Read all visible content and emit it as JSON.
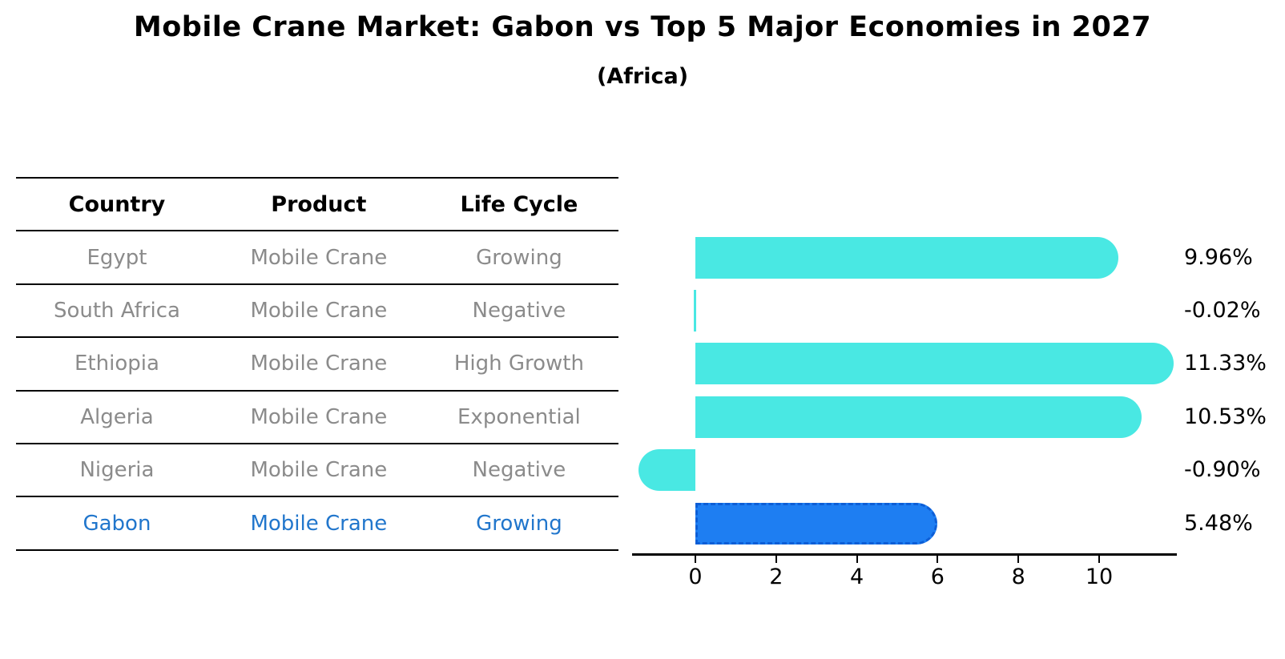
{
  "chart_data": {
    "type": "bar",
    "orientation": "horizontal",
    "title": "Mobile Crane Market: Gabon vs Top 5 Major Economies in 2027",
    "subtitle": "(Africa)",
    "categories": [
      "Egypt",
      "South Africa",
      "Ethiopia",
      "Algeria",
      "Nigeria",
      "Gabon"
    ],
    "values": [
      9.96,
      -0.02,
      11.33,
      10.53,
      -0.9,
      5.48
    ],
    "value_labels": [
      "9.96%",
      "-0.02%",
      "11.33%",
      "10.53%",
      "-0.90%",
      "5.48%"
    ],
    "xticks": [
      0,
      2,
      4,
      6,
      8,
      10
    ],
    "xlim": [
      -1.57,
      11.93
    ],
    "grid": false,
    "legend_position": "none",
    "bar_color": "#49e8e3",
    "highlight_bar_color": "#1e7ef2",
    "highlight_edge_color": "#0d5ed6",
    "highlight_index": 5
  },
  "table": {
    "headers": [
      "Country",
      "Product",
      "Life Cycle"
    ],
    "rows": [
      {
        "country": "Egypt",
        "product": "Mobile Crane",
        "life_cycle": "Growing",
        "highlighted": false
      },
      {
        "country": "South Africa",
        "product": "Mobile Crane",
        "life_cycle": "Negative",
        "highlighted": false
      },
      {
        "country": "Ethiopia",
        "product": "Mobile Crane",
        "life_cycle": "High Growth",
        "highlighted": false
      },
      {
        "country": "Algeria",
        "product": "Mobile Crane",
        "life_cycle": "Exponential",
        "highlighted": false
      },
      {
        "country": "Nigeria",
        "product": "Mobile Crane",
        "life_cycle": "Negative",
        "highlighted": false
      },
      {
        "country": "Gabon",
        "product": "Mobile Crane",
        "life_cycle": "Growing",
        "highlighted": true
      }
    ],
    "normal_text_color": "#8b8b8b",
    "header_text_color": "#000000",
    "highlight_text_color": "#2176cc"
  }
}
